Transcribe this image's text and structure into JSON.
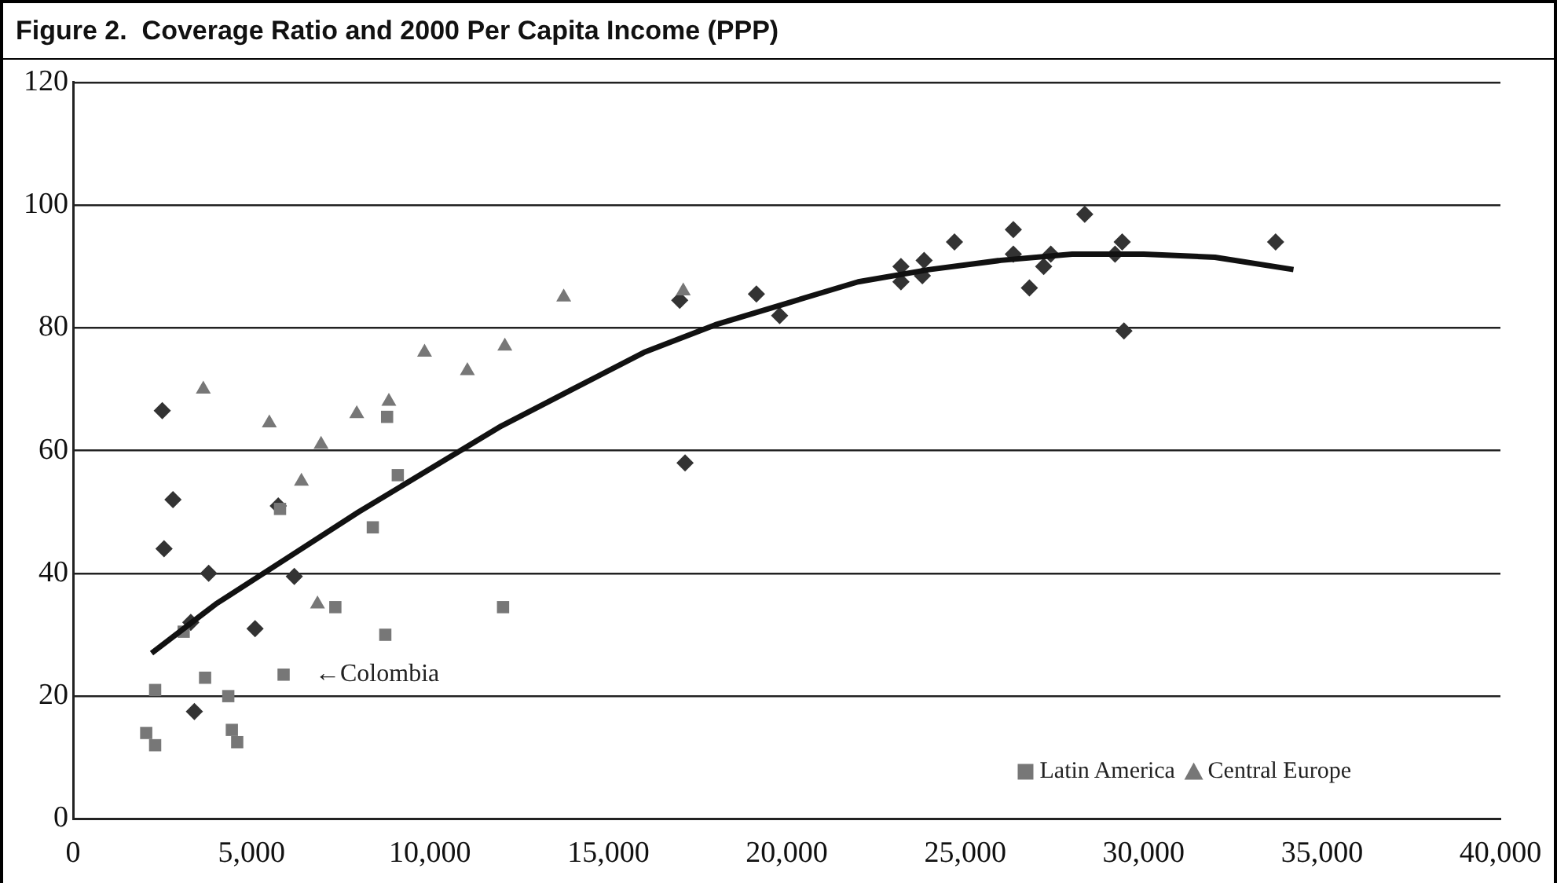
{
  "chart_data": {
    "type": "scatter",
    "title": "Figure 2.  Coverage Ratio and 2000 Per Capita Income (PPP)",
    "annotations": [
      {
        "text": "←Colombia",
        "x": 5900,
        "y": 23.5
      }
    ],
    "xlim": [
      0,
      40000
    ],
    "xticks": [
      {
        "value": 0,
        "label": "0"
      },
      {
        "value": 5000,
        "label": "5,000"
      },
      {
        "value": 10000,
        "label": "10,000"
      },
      {
        "value": 15000,
        "label": "15,000"
      },
      {
        "value": 20000,
        "label": "20,000"
      },
      {
        "value": 25000,
        "label": "25,000"
      },
      {
        "value": 30000,
        "label": "30,000"
      },
      {
        "value": 35000,
        "label": "35,000"
      },
      {
        "value": 40000,
        "label": "40,000"
      }
    ],
    "ylim": [
      0,
      120
    ],
    "yticks": [
      0,
      20,
      40,
      60,
      80,
      100,
      120
    ],
    "grid": "y",
    "legend": "bottom right",
    "series": [
      {
        "color": "#333333",
        "marker": "diamond",
        "x": [
          2500,
          2550,
          2800,
          3300,
          3400,
          3800,
          5100,
          5750,
          6200,
          17000,
          17150,
          19150,
          19800,
          23200,
          23200,
          23800,
          23850,
          24700,
          26350,
          26350,
          26800,
          27200,
          27400,
          28350,
          29200,
          29400,
          29450,
          33700
        ],
        "values": [
          66.5,
          44,
          52,
          32,
          17.5,
          40,
          31,
          51,
          39.5,
          84.5,
          58,
          85.5,
          82,
          90,
          87.5,
          88.5,
          91,
          94,
          96,
          92,
          86.5,
          90,
          92,
          98.5,
          92,
          94,
          79.5,
          94
        ]
      },
      {
        "name": "Latin America",
        "color": "#777777",
        "marker": "square",
        "x": [
          2050,
          2300,
          2300,
          3100,
          3700,
          4350,
          4450,
          4600,
          5800,
          5900,
          7350,
          8400,
          8750,
          8800,
          9100,
          12050
        ],
        "values": [
          14,
          21,
          12,
          30.5,
          23,
          20,
          14.5,
          12.5,
          50.5,
          23.5,
          34.5,
          47.5,
          30,
          65.5,
          56,
          34.5
        ]
      },
      {
        "name": "Central Europe",
        "color": "#777777",
        "marker": "triangle",
        "x": [
          3650,
          5500,
          6400,
          6850,
          6950,
          7950,
          8850,
          9850,
          11050,
          12100,
          13750,
          17100
        ],
        "values": [
          70,
          64.5,
          55,
          35,
          61,
          66,
          68,
          76,
          73,
          77,
          85,
          86
        ]
      },
      {
        "type": "line",
        "color": "#111111",
        "marker": "none",
        "x": [
          2200,
          4000,
          6000,
          8000,
          10000,
          12000,
          14000,
          16000,
          18000,
          20000,
          22000,
          24000,
          26000,
          28000,
          30000,
          32000,
          34200
        ],
        "values": [
          27,
          35,
          42.5,
          50,
          57,
          64,
          70,
          76,
          80.5,
          84,
          87.5,
          89.5,
          91,
          92,
          92,
          91.5,
          89.5
        ]
      }
    ]
  }
}
